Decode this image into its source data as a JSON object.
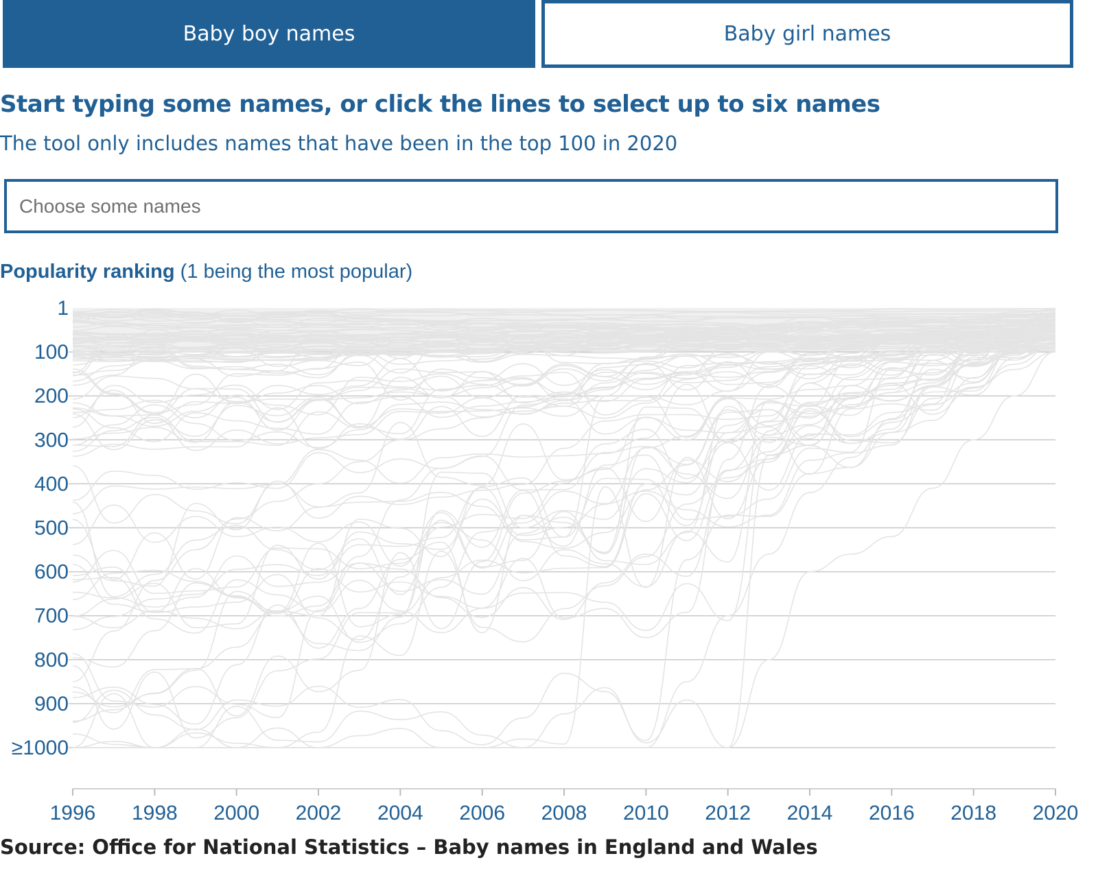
{
  "tabs": [
    {
      "label": "Baby boy names",
      "active": true
    },
    {
      "label": "Baby girl names",
      "active": false
    }
  ],
  "heading": "Start typing some names, or click the lines to select up to six names",
  "subheading": "The tool only includes names that have been in the top 100 in 2020",
  "search": {
    "placeholder": "Choose some names",
    "value": ""
  },
  "chart_label": {
    "bold": "Popularity ranking",
    "rest": " (1 being the most popular)"
  },
  "source": "Source: Office for National Statistics – Baby names in England and Wales",
  "colors": {
    "accent": "#206095",
    "line": "#e4e4e4",
    "grid": "#c8c8c8"
  },
  "chart_data": {
    "type": "line",
    "x_range": [
      1996,
      2020
    ],
    "x_ticks": [
      "1996",
      "1998",
      "2000",
      "2002",
      "2004",
      "2006",
      "2008",
      "2010",
      "2012",
      "2014",
      "2016",
      "2018",
      "2020"
    ],
    "y_range": [
      1,
      1000
    ],
    "y_inverted": true,
    "y_ticks": [
      {
        "value": 1,
        "label": "1"
      },
      {
        "value": 100,
        "label": "100"
      },
      {
        "value": 200,
        "label": "200"
      },
      {
        "value": 300,
        "label": "300"
      },
      {
        "value": 400,
        "label": "400"
      },
      {
        "value": 500,
        "label": "500"
      },
      {
        "value": 600,
        "label": "600"
      },
      {
        "value": 700,
        "label": "700"
      },
      {
        "value": 800,
        "label": "800"
      },
      {
        "value": 900,
        "label": "900"
      },
      {
        "value": 1000,
        "label": "≥1000"
      }
    ],
    "grid": true,
    "series_count": 100,
    "series_note_endpoint": "all series end within top 100 in 2020",
    "sample_series": [
      {
        "years": [
          1996,
          1998,
          2000,
          2002,
          2004,
          2006,
          2008,
          2010,
          2012,
          2014,
          2016,
          2018,
          2020
        ],
        "ranks": [
          1000,
          1000,
          1000,
          1000,
          1000,
          1000,
          1000,
          1000,
          700,
          420,
          260,
          180,
          100
        ]
      },
      {
        "years": [
          1996,
          1998,
          2000,
          2002,
          2004,
          2006,
          2008,
          2010,
          2012,
          2014,
          2016,
          2018,
          2020
        ],
        "ranks": [
          850,
          620,
          480,
          400,
          300,
          250,
          200,
          160,
          130,
          115,
          105,
          100,
          98
        ]
      },
      {
        "years": [
          1996,
          1998,
          2000,
          2002,
          2004,
          2006,
          2008,
          2010,
          2012,
          2014,
          2016,
          2018,
          2020
        ],
        "ranks": [
          1000,
          1000,
          1000,
          1000,
          1000,
          1000,
          1000,
          1000,
          1000,
          600,
          520,
          300,
          100
        ]
      }
    ]
  }
}
